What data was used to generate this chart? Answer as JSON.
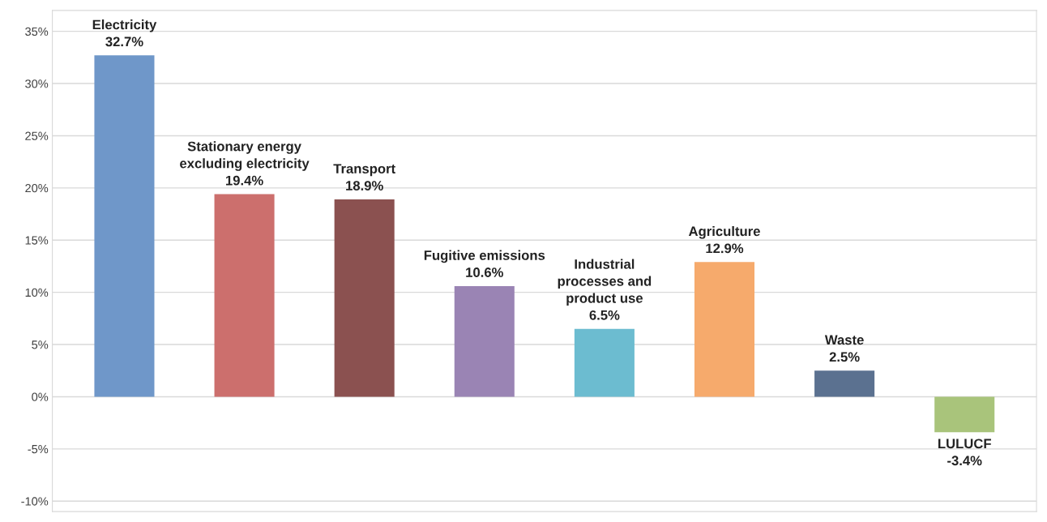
{
  "chart_data": {
    "type": "bar",
    "categories": [
      "Electricity",
      "Stationary energy\nexcluding electricity",
      "Transport",
      "Fugitive emissions",
      "Industrial\nprocesses and\nproduct use",
      "Agriculture",
      "Waste",
      "LULUCF"
    ],
    "values": [
      32.7,
      19.4,
      18.9,
      10.6,
      6.5,
      12.9,
      2.5,
      -3.4
    ],
    "value_labels": [
      "32.7%",
      "19.4%",
      "18.9%",
      "10.6%",
      "6.5%",
      "12.9%",
      "2.5%",
      "-3.4%"
    ],
    "colors": [
      "#6f97c9",
      "#cc6f6d",
      "#8b5150",
      "#9a84b4",
      "#6cbcd0",
      "#f6aa6c",
      "#5b7190",
      "#a9c47b"
    ],
    "ylim": [
      -11,
      37
    ],
    "yticks": [
      {
        "value": -10,
        "label": "-10%"
      },
      {
        "value": -5,
        "label": "-5%"
      },
      {
        "value": 0,
        "label": "0%"
      },
      {
        "value": 5,
        "label": "5%"
      },
      {
        "value": 10,
        "label": "10%"
      },
      {
        "value": 15,
        "label": "15%"
      },
      {
        "value": 20,
        "label": "20%"
      },
      {
        "value": 25,
        "label": "25%"
      },
      {
        "value": 30,
        "label": "30%"
      },
      {
        "value": 35,
        "label": "35%"
      }
    ],
    "grid": "y",
    "tick_labels": "y"
  }
}
